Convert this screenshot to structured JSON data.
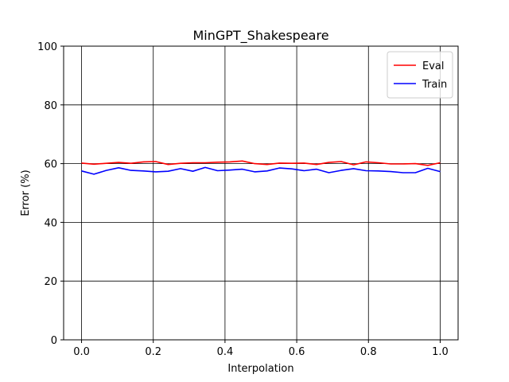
{
  "chart_data": {
    "type": "line",
    "title": "MinGPT_Shakespeare",
    "xlabel": "Interpolation",
    "ylabel": "Error (%)",
    "xlim": [
      -0.05,
      1.05
    ],
    "ylim": [
      0,
      100
    ],
    "xticks": [
      0.0,
      0.2,
      0.4,
      0.6,
      0.8,
      1.0
    ],
    "xtick_labels": [
      "0.0",
      "0.2",
      "0.4",
      "0.6",
      "0.8",
      "1.0"
    ],
    "yticks": [
      0,
      20,
      40,
      60,
      80,
      100
    ],
    "ytick_labels": [
      "0",
      "20",
      "40",
      "60",
      "80",
      "100"
    ],
    "grid": true,
    "legend_position": "top-right",
    "x": [
      0.0,
      0.0345,
      0.069,
      0.1034,
      0.1379,
      0.1724,
      0.2069,
      0.2414,
      0.2759,
      0.3103,
      0.3448,
      0.3793,
      0.4138,
      0.4483,
      0.4828,
      0.5172,
      0.5517,
      0.5862,
      0.6207,
      0.6552,
      0.6897,
      0.7241,
      0.7586,
      0.7931,
      0.8276,
      0.8621,
      0.8966,
      0.931,
      0.9655,
      1.0
    ],
    "series": [
      {
        "name": "Eval",
        "color": "#ff0000",
        "values": [
          60.2,
          59.8,
          60.1,
          60.4,
          60.1,
          60.6,
          60.7,
          59.7,
          60.1,
          60.3,
          60.3,
          60.5,
          60.6,
          60.9,
          60.0,
          59.7,
          60.2,
          60.1,
          60.2,
          59.7,
          60.4,
          60.7,
          59.6,
          60.6,
          60.3,
          59.9,
          59.9,
          60.0,
          59.4,
          60.3
        ]
      },
      {
        "name": "Train",
        "color": "#0000ff",
        "values": [
          57.5,
          56.4,
          57.7,
          58.6,
          57.7,
          57.5,
          57.2,
          57.4,
          58.3,
          57.4,
          58.7,
          57.6,
          57.8,
          58.1,
          57.2,
          57.5,
          58.5,
          58.2,
          57.6,
          58.1,
          56.9,
          57.7,
          58.3,
          57.6,
          57.5,
          57.3,
          56.9,
          56.9,
          58.4,
          57.3
        ]
      }
    ]
  }
}
